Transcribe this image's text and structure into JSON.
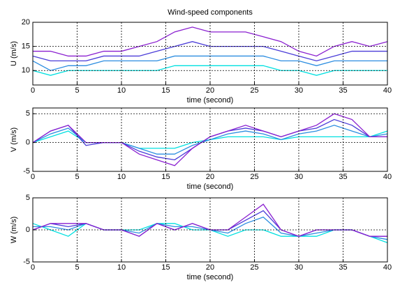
{
  "chart_data": [
    {
      "type": "line",
      "title": "Wind-speed components",
      "xlabel": "time (second)",
      "ylabel": "U (m/s)",
      "x": [
        0,
        2,
        4,
        6,
        8,
        10,
        12,
        14,
        16,
        18,
        20,
        22,
        24,
        26,
        28,
        30,
        32,
        34,
        36,
        38,
        40
      ],
      "xlim": [
        0,
        40
      ],
      "xticks": [
        0,
        5,
        10,
        15,
        20,
        25,
        30,
        35,
        40
      ],
      "ylim": [
        7,
        20
      ],
      "yticks": [
        10,
        15,
        20
      ],
      "grid": true,
      "series": [
        {
          "color": "#00e0e0",
          "values": [
            10,
            9,
            10,
            10,
            10,
            10,
            10,
            10,
            11,
            11,
            11,
            11,
            11,
            11,
            10,
            10,
            9,
            10,
            10,
            10,
            10
          ]
        },
        {
          "color": "#2b8de0",
          "values": [
            12,
            10,
            11,
            11,
            12,
            12,
            12,
            12,
            13,
            13,
            13,
            13,
            13,
            13,
            12,
            12,
            11,
            12,
            12,
            12,
            12
          ]
        },
        {
          "color": "#4a3cd8",
          "values": [
            13,
            12,
            12,
            12,
            13,
            13,
            13,
            14,
            15,
            16,
            15,
            15,
            15,
            15,
            14,
            13,
            12,
            13,
            14,
            14,
            14
          ]
        },
        {
          "color": "#8a1fd0",
          "values": [
            14,
            14,
            13,
            13,
            14,
            14,
            15,
            16,
            18,
            19,
            18,
            18,
            18,
            17,
            16,
            14,
            13,
            15,
            16,
            15,
            16
          ]
        }
      ]
    },
    {
      "type": "line",
      "xlabel": "time (second)",
      "ylabel": "V (m/s)",
      "x": [
        0,
        2,
        4,
        6,
        8,
        10,
        12,
        14,
        16,
        18,
        20,
        22,
        24,
        26,
        28,
        30,
        32,
        34,
        36,
        38,
        40
      ],
      "xlim": [
        0,
        40
      ],
      "xticks": [
        0,
        5,
        10,
        15,
        20,
        25,
        30,
        35,
        40
      ],
      "ylim": [
        -5,
        6
      ],
      "yticks": [
        -5,
        0,
        5
      ],
      "grid": true,
      "series": [
        {
          "color": "#00e0e0",
          "values": [
            0,
            1,
            2,
            0,
            0,
            0,
            -1,
            -1,
            -1,
            0,
            0.5,
            1,
            1,
            1,
            0.5,
            1,
            1,
            1,
            1,
            1,
            2
          ]
        },
        {
          "color": "#2b8de0",
          "values": [
            0,
            1.5,
            2.5,
            0,
            0,
            0,
            -1,
            -2,
            -2,
            -0.5,
            0.5,
            1.5,
            2,
            1.5,
            0.5,
            1.5,
            2,
            3,
            2,
            1,
            1.5
          ]
        },
        {
          "color": "#4a3cd8",
          "values": [
            0,
            2,
            3,
            -0.5,
            0,
            0,
            -1.5,
            -2.5,
            -3,
            -1,
            1,
            2,
            2.5,
            2,
            1,
            2,
            2.5,
            4,
            3,
            1,
            1
          ]
        },
        {
          "color": "#8a1fd0",
          "values": [
            0,
            2,
            3,
            0,
            0,
            0,
            -2,
            -3,
            -4,
            -1,
            1,
            2,
            3,
            2,
            1,
            2,
            3,
            5,
            4,
            1,
            1
          ]
        }
      ]
    },
    {
      "type": "line",
      "xlabel": "time (second)",
      "ylabel": "W (m/s)",
      "x": [
        0,
        2,
        4,
        6,
        8,
        10,
        12,
        14,
        16,
        18,
        20,
        22,
        24,
        26,
        28,
        30,
        32,
        34,
        36,
        38,
        40
      ],
      "xlim": [
        0,
        40
      ],
      "xticks": [
        0,
        5,
        10,
        15,
        20,
        25,
        30,
        35,
        40
      ],
      "ylim": [
        -5,
        5
      ],
      "yticks": [
        -5,
        0,
        5
      ],
      "grid": true,
      "series": [
        {
          "color": "#00e0e0",
          "values": [
            1,
            0,
            -1,
            1,
            0,
            0,
            0,
            1,
            1,
            0,
            0,
            -1,
            0,
            0,
            -1,
            -1,
            -1,
            0,
            0,
            -1,
            -2
          ]
        },
        {
          "color": "#2b8de0",
          "values": [
            0.5,
            0.5,
            0,
            1,
            0,
            0,
            -0.5,
            1,
            0.5,
            0.5,
            0,
            -0.5,
            1,
            2,
            -0.5,
            -1,
            -0.5,
            0,
            0,
            -1,
            -1.5
          ]
        },
        {
          "color": "#4a3cd8",
          "values": [
            0,
            1,
            0.5,
            1,
            0,
            0,
            -1,
            1,
            0,
            1,
            0,
            0,
            1.5,
            3,
            0,
            -1,
            0,
            0,
            0,
            -1,
            -1
          ]
        },
        {
          "color": "#8a1fd0",
          "values": [
            0,
            1,
            1,
            1,
            0,
            0,
            -1,
            1,
            0,
            1,
            0,
            0,
            2,
            4,
            0,
            -1,
            0,
            0,
            0,
            -1,
            -1
          ]
        }
      ]
    }
  ]
}
